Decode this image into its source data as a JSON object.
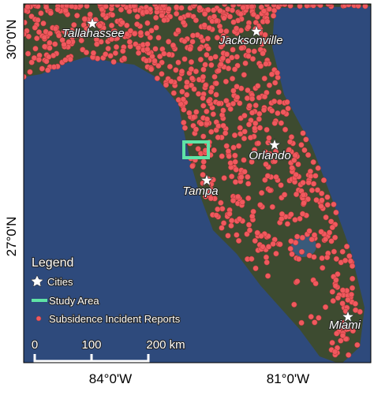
{
  "map": {
    "lat_labels": [
      "30°0'N",
      "27°0'N"
    ],
    "lon_labels": [
      "84°0'W",
      "81°0'W"
    ],
    "cities": [
      "Tallahassee",
      "Jacksonville",
      "Orlando",
      "Tampa",
      "Miami"
    ],
    "legend": {
      "title": "Legend",
      "items": [
        "Cities",
        "Study Area",
        "Subsidence Incident Reports"
      ]
    },
    "scale_bar": {
      "labels": [
        "0",
        "100",
        "200 km"
      ]
    }
  }
}
